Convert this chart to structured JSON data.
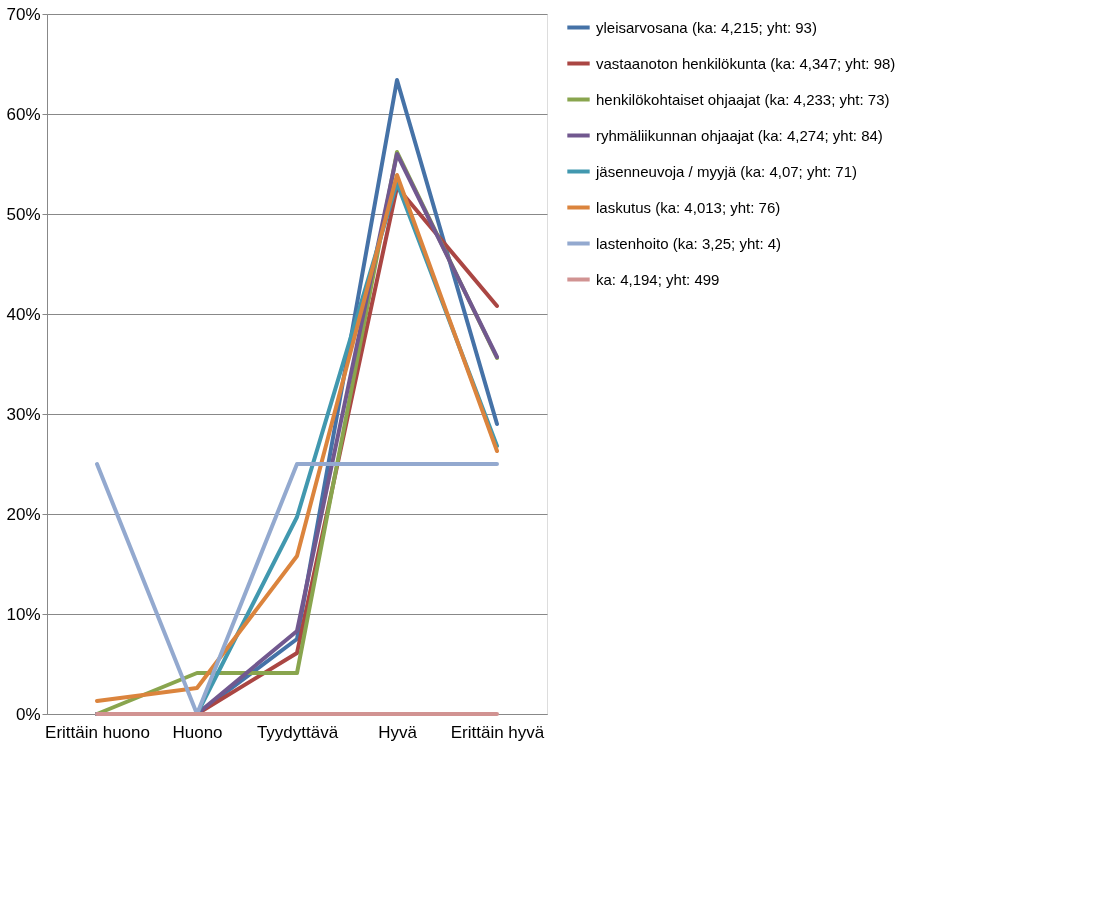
{
  "chart_data": {
    "type": "line",
    "categories": [
      "Erittäin huono",
      "Huono",
      "Tyydyttävä",
      "Hyvä",
      "Erittäin hyvä"
    ],
    "series": [
      {
        "name": "yleisarvosana (ka: 4,215; yht: 93)",
        "color": "#4572a7",
        "values": [
          0,
          0,
          7.5,
          63.4,
          29.0
        ]
      },
      {
        "name": "vastaanoton henkilökunta (ka: 4,347; yht: 98)",
        "color": "#aa4643",
        "values": [
          0,
          0,
          6.1,
          52.7,
          40.8
        ]
      },
      {
        "name": "henkilökohtaiset ohjaajat (ka: 4,233; yht: 73)",
        "color": "#89a54e",
        "values": [
          0,
          4.1,
          4.1,
          56.2,
          35.6
        ]
      },
      {
        "name": "ryhmäliikunnan ohjaajat (ka: 4,274; yht: 84)",
        "color": "#71588f",
        "values": [
          0,
          0,
          8.3,
          56.0,
          35.7
        ]
      },
      {
        "name": "jäsenneuvoja / myyjä (ka: 4,07; yht: 71)",
        "color": "#4198af",
        "values": [
          0,
          0,
          19.7,
          53.1,
          26.8
        ]
      },
      {
        "name": "laskutus (ka: 4,013; yht: 76)",
        "color": "#db843d",
        "values": [
          1.3,
          2.6,
          15.8,
          53.9,
          26.3
        ]
      },
      {
        "name": "lastenhoito (ka: 3,25; yht: 4)",
        "color": "#93a9cf",
        "values": [
          25,
          0,
          25,
          25,
          25
        ]
      },
      {
        "name": "ka: 4,194; yht: 499",
        "color": "#d19392",
        "values": [
          0,
          0,
          0,
          0,
          0
        ]
      }
    ],
    "ylim": [
      0,
      70
    ],
    "yticks": [
      {
        "value": 0,
        "label": "0%"
      },
      {
        "value": 10,
        "label": "10%"
      },
      {
        "value": 20,
        "label": "20%"
      },
      {
        "value": 30,
        "label": "30%"
      },
      {
        "value": 40,
        "label": "40%"
      },
      {
        "value": 50,
        "label": "50%"
      },
      {
        "value": 60,
        "label": "60%"
      },
      {
        "value": 70,
        "label": "70%"
      }
    ],
    "grid": "y",
    "legend": "right",
    "marker": "none",
    "line_style": "solid"
  }
}
